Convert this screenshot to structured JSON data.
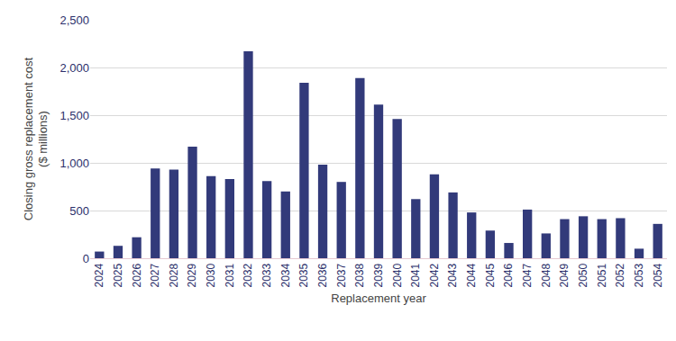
{
  "chart_data": {
    "type": "bar",
    "x_label": "Replacement year",
    "y_label": "Closing gross replacement cost\n($ millions)",
    "categories": [
      "2024",
      "2025",
      "2026",
      "2027",
      "2028",
      "2029",
      "2030",
      "2031",
      "2032",
      "2033",
      "2034",
      "2035",
      "2036",
      "2037",
      "2038",
      "2039",
      "2040",
      "2041",
      "2042",
      "2043",
      "2044",
      "2045",
      "2046",
      "2047",
      "2048",
      "2049",
      "2050",
      "2051",
      "2052",
      "2053",
      "2054"
    ],
    "values": [
      70,
      130,
      220,
      940,
      930,
      1170,
      860,
      830,
      2170,
      810,
      700,
      1840,
      980,
      800,
      1890,
      1610,
      1460,
      620,
      880,
      690,
      480,
      290,
      160,
      510,
      260,
      410,
      440,
      410,
      420,
      100,
      360
    ],
    "color": "#323a7a",
    "ylim": [
      0,
      2500
    ],
    "yticks": [
      0,
      500,
      {
        "value": 1000,
        "label": "1,000"
      },
      {
        "value": 1500,
        "label": "1,500"
      },
      {
        "value": 2000,
        "label": "2,000"
      },
      {
        "value": 2500,
        "label": "2,500"
      }
    ],
    "grid": true
  }
}
